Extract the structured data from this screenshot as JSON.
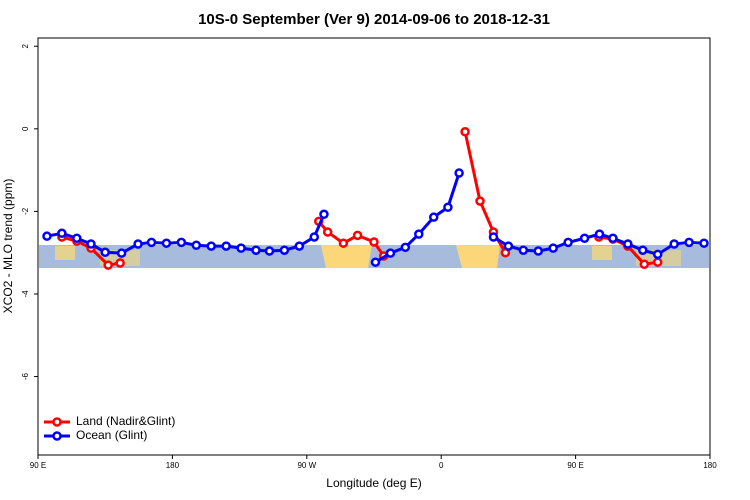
{
  "chart_data": {
    "type": "line",
    "title": "10S-0 September (Ver 9)   2014-09-06 to 2018-12-31",
    "xlabel": "Longitude (deg E)",
    "ylabel": "XCO2 - MLO trend (ppm)",
    "xlim": [
      90,
      540
    ],
    "ylim": [
      -7.9,
      2.2
    ],
    "xticks": [
      {
        "value": 90,
        "label": "90 E"
      },
      180,
      {
        "value": 270,
        "label": "90 W"
      },
      {
        "value": 360,
        "label": "0"
      },
      {
        "value": 450,
        "label": "90 E"
      },
      {
        "value": 540,
        "label": "180"
      }
    ],
    "yticks": [
      2,
      0,
      -2,
      -4,
      -6
    ],
    "legend": "bottom-left",
    "series": [
      {
        "name": "Land (Nadir&Glint)",
        "color": "#ff0000",
        "x": [
          106,
          116,
          125.5,
          137,
          145,
          null,
          278,
          284,
          294.5,
          304,
          315,
          321.5,
          null,
          376,
          386,
          395,
          403,
          null,
          465.6,
          475,
          485,
          496,
          505
        ],
        "values": [
          -2.62,
          -2.72,
          -2.89,
          -3.3,
          -3.25,
          null,
          -2.24,
          -2.5,
          -2.77,
          -2.58,
          -2.74,
          -3.08,
          null,
          -0.07,
          -1.75,
          -2.5,
          -3.0,
          null,
          -2.62,
          -2.67,
          -2.84,
          -3.28,
          -3.23
        ]
      },
      {
        "name": "Ocean (Glint)",
        "color": "#0000ff",
        "x": [
          96,
          106,
          116,
          125.5,
          135,
          146,
          157,
          166,
          176,
          186,
          196,
          206,
          216,
          226,
          236,
          245,
          255,
          265,
          275,
          281.5,
          null,
          316,
          326,
          336,
          345,
          355,
          364.5,
          372,
          null,
          395,
          405,
          415,
          425,
          435,
          445,
          456,
          466,
          475,
          485,
          495,
          505,
          516,
          526,
          536
        ],
        "values": [
          -2.6,
          -2.53,
          -2.65,
          -2.79,
          -2.99,
          -3.01,
          -2.79,
          -2.75,
          -2.77,
          -2.75,
          -2.82,
          -2.84,
          -2.84,
          -2.89,
          -2.94,
          -2.96,
          -2.94,
          -2.84,
          -2.62,
          -2.07,
          null,
          -3.23,
          -3.01,
          -2.87,
          -2.55,
          -2.14,
          -1.9,
          -1.07,
          null,
          -2.62,
          -2.84,
          -2.94,
          -2.96,
          -2.89,
          -2.75,
          -2.65,
          -2.55,
          -2.65,
          -2.79,
          -2.94,
          -3.04,
          -2.79,
          -2.75,
          -2.77
        ]
      }
    ]
  }
}
